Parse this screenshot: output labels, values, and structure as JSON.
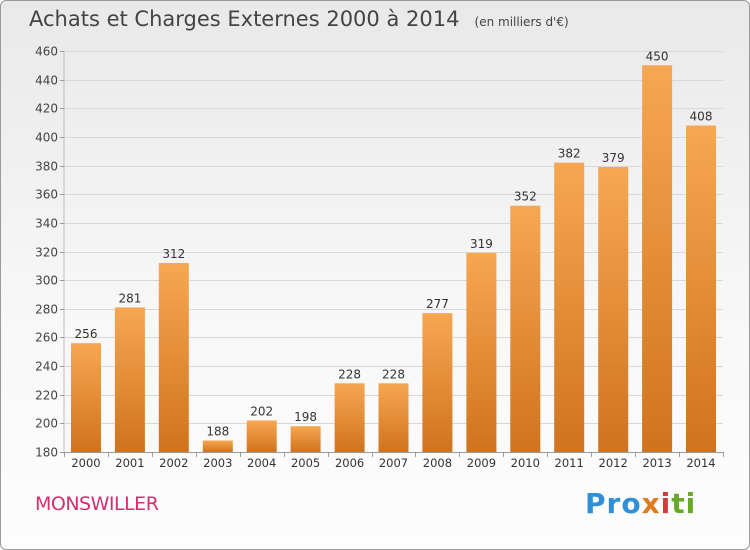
{
  "header": {
    "title": "Achats et Charges Externes 2000 à 2014",
    "subtitle": "(en milliers d'€)"
  },
  "footer": {
    "town": "MONSWILLER",
    "brand": {
      "p1": "Pro",
      "p2": "x",
      "p3": "i",
      "p4": "ti"
    }
  },
  "colors": {
    "bar_top": "#f7a751",
    "bar_bottom": "#d0731e",
    "grid": "#d8d8d8",
    "town": "#d0306f"
  },
  "chart_data": {
    "type": "bar",
    "title": "Achats et Charges Externes 2000 à 2014",
    "subtitle": "(en milliers d'€)",
    "xlabel": "",
    "ylabel": "",
    "categories": [
      "2000",
      "2001",
      "2002",
      "2003",
      "2004",
      "2005",
      "2006",
      "2007",
      "2008",
      "2009",
      "2010",
      "2011",
      "2012",
      "2013",
      "2014"
    ],
    "values": [
      256,
      281,
      312,
      188,
      202,
      198,
      228,
      228,
      277,
      319,
      352,
      382,
      379,
      450,
      408
    ],
    "ylim": [
      180,
      460
    ],
    "yticks": [
      180,
      200,
      220,
      240,
      260,
      280,
      300,
      320,
      340,
      360,
      380,
      400,
      420,
      440,
      460
    ],
    "grid": true,
    "data_labels": true,
    "legend": "none"
  }
}
